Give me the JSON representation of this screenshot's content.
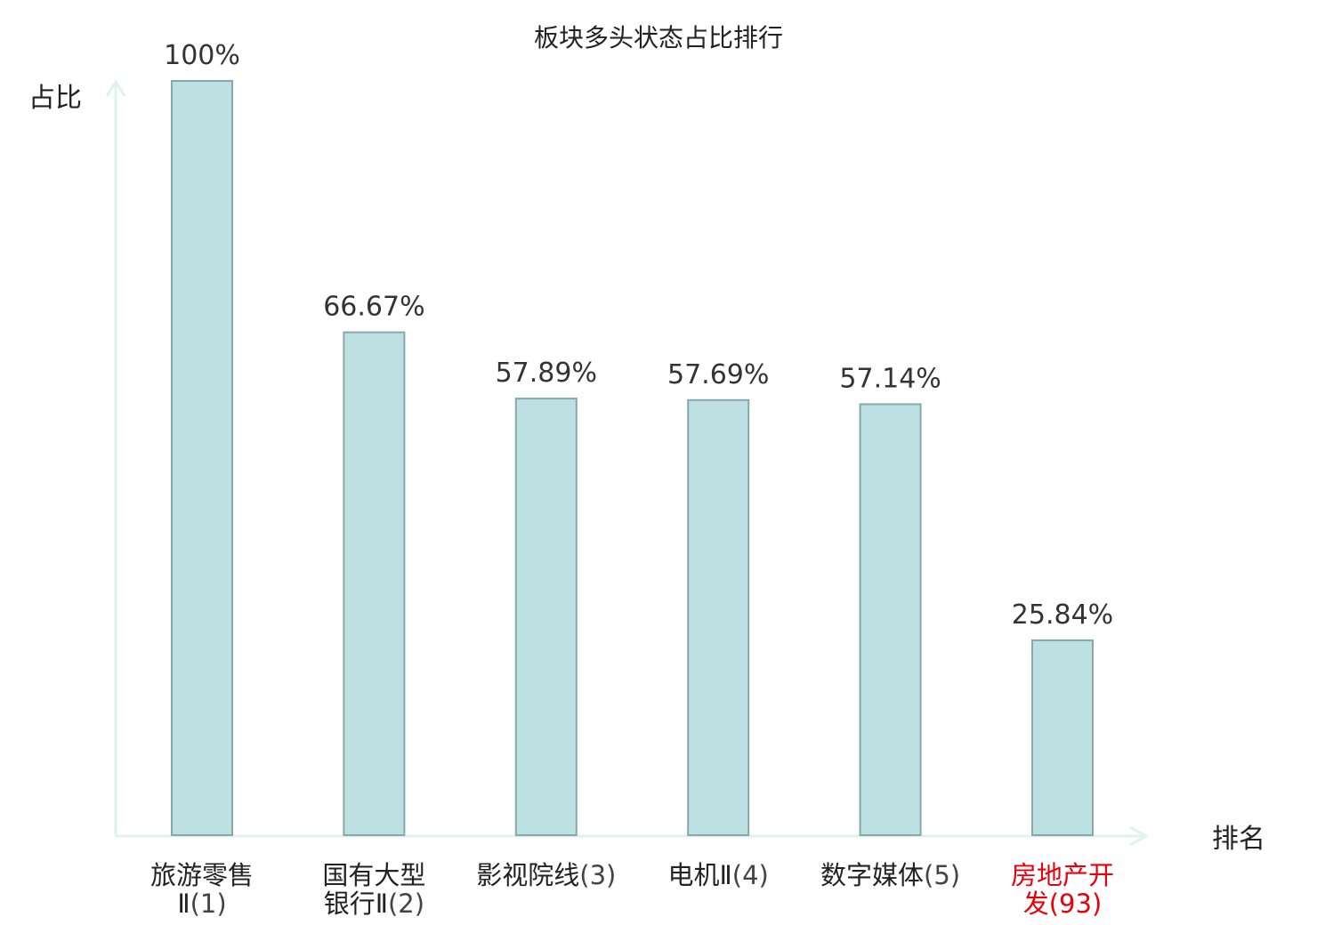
{
  "chart_data": {
    "type": "bar",
    "title": "板块多头状态占比排行",
    "ylabel": "占比",
    "xlabel": "排名",
    "ylim": [
      0,
      100
    ],
    "grid": false,
    "categories": [
      {
        "name_lines": [
          "旅游零售",
          "Ⅱ"
        ],
        "rank": "(1)",
        "highlight": false
      },
      {
        "name_lines": [
          "国有大型",
          "银行Ⅱ"
        ],
        "rank": "(2)",
        "highlight": false
      },
      {
        "name_lines": [
          "影视院线"
        ],
        "rank": "(3)",
        "highlight": false
      },
      {
        "name_lines": [
          "电机Ⅱ"
        ],
        "rank": "(4)",
        "highlight": false
      },
      {
        "name_lines": [
          "数字媒体"
        ],
        "rank": "(5)",
        "highlight": false
      },
      {
        "name_lines": [
          "房地产开",
          "发"
        ],
        "rank": "(93)",
        "highlight": true
      }
    ],
    "values": [
      100,
      66.67,
      57.89,
      57.69,
      57.14,
      25.84
    ],
    "value_labels": [
      "100%",
      "66.67%",
      "57.89%",
      "57.69%",
      "57.14%",
      "25.84%"
    ],
    "colors": {
      "bar_fill": "#bde0e3",
      "bar_stroke": "#86a8ac",
      "axis": "#e0f2ef",
      "category_text": "#222222",
      "rank_text": "#444444",
      "highlight_text": "#e8000b"
    }
  }
}
